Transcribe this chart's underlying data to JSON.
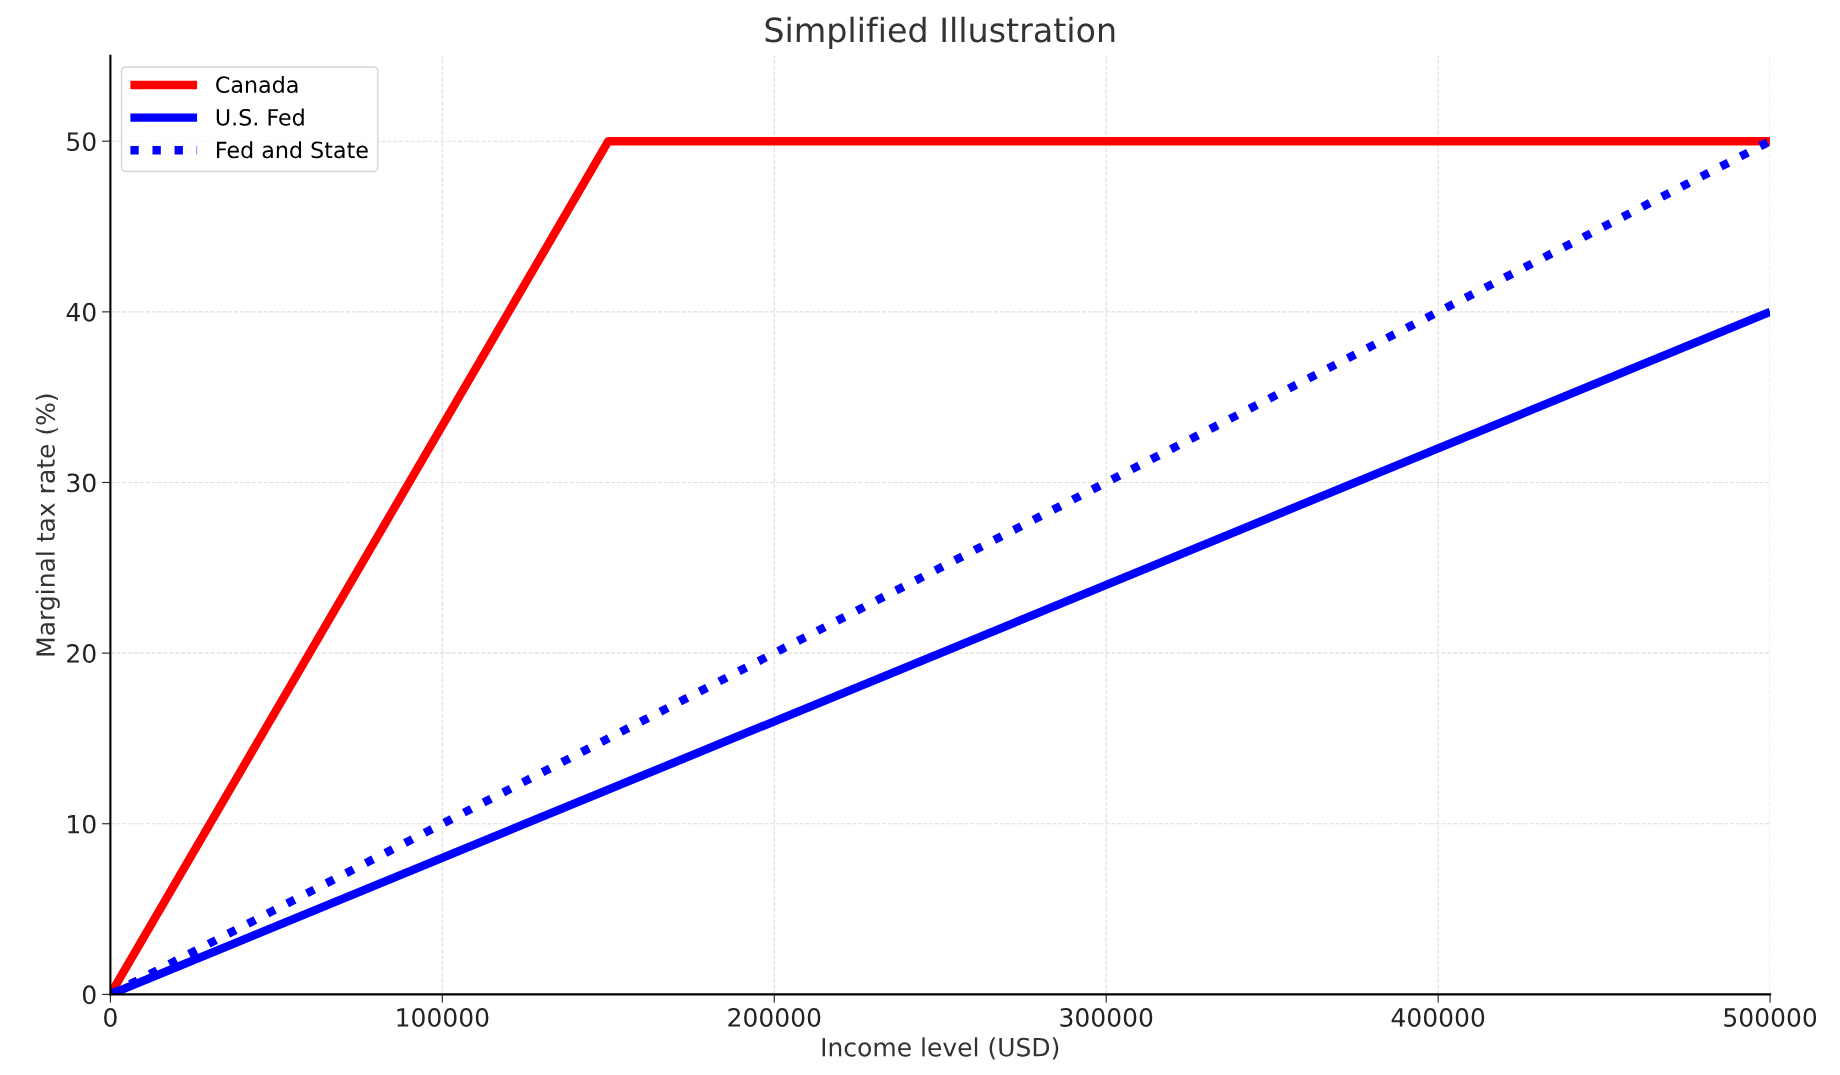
{
  "chart_data": {
    "type": "line",
    "title": "Simplified Illustration",
    "xlabel": "Income level (USD)",
    "ylabel": "Marginal tax rate (%)",
    "series": [
      {
        "name": "Canada",
        "color": "#ff0000",
        "x": [
          0,
          150000,
          500000
        ],
        "values": [
          0,
          50,
          50
        ],
        "line_style": "solid"
      },
      {
        "name": "U.S. Fed",
        "color": "#0000ff",
        "x": [
          0,
          500000
        ],
        "values": [
          0,
          40
        ],
        "line_style": "solid"
      },
      {
        "name": "Fed and State",
        "color": "#0000ff",
        "x": [
          0,
          500000
        ],
        "values": [
          0,
          50
        ],
        "line_style": "dotted"
      }
    ],
    "xlim": [
      0,
      500000
    ],
    "xticks": [
      0,
      100000,
      200000,
      300000,
      400000,
      500000
    ],
    "ylim": [
      0,
      55
    ],
    "yticks": [
      0,
      10,
      20,
      30,
      40,
      50
    ],
    "grid": true,
    "legend": "top left",
    "marker": "none"
  }
}
